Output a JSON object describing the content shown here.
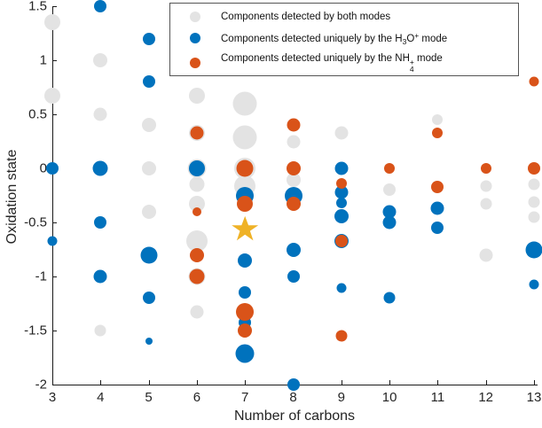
{
  "chart_data": {
    "type": "scatter",
    "xlabel": "Number of carbons",
    "ylabel": "Oxidation state",
    "xlim": [
      3,
      13
    ],
    "ylim": [
      -2,
      1.5
    ],
    "xticks": [
      3,
      4,
      5,
      6,
      7,
      8,
      9,
      10,
      11,
      12,
      13
    ],
    "ytick_labels": [
      "-2",
      "-1.5",
      "-1",
      "-0.5",
      "0",
      "0.5",
      "1",
      "1.5"
    ],
    "ytick_values": [
      -2,
      -1.5,
      -1,
      -0.5,
      0,
      0.5,
      1,
      1.5
    ],
    "legend_position": "top-center",
    "grid": false,
    "series": [
      {
        "name": "Components detected by both modes",
        "color": "#E3E3E3",
        "points": [
          {
            "x": 3,
            "y": 1.35,
            "r": 9
          },
          {
            "x": 3,
            "y": 0.67,
            "r": 9
          },
          {
            "x": 4,
            "y": 1.0,
            "r": 8
          },
          {
            "x": 4,
            "y": 0.5,
            "r": 7.5
          },
          {
            "x": 4,
            "y": -1.5,
            "r": 6.5
          },
          {
            "x": 5,
            "y": 0.4,
            "r": 8
          },
          {
            "x": 5,
            "y": 0,
            "r": 8
          },
          {
            "x": 5,
            "y": -0.4,
            "r": 8
          },
          {
            "x": 6,
            "y": 0.67,
            "r": 9
          },
          {
            "x": 6,
            "y": 0.33,
            "r": 9
          },
          {
            "x": 6,
            "y": 0,
            "r": 10.5
          },
          {
            "x": 6,
            "y": -0.15,
            "r": 8.5
          },
          {
            "x": 6,
            "y": -0.33,
            "r": 9
          },
          {
            "x": 6,
            "y": -0.67,
            "r": 12
          },
          {
            "x": 6,
            "y": -1.0,
            "r": 9.5
          },
          {
            "x": 6,
            "y": -1.33,
            "r": 7.5
          },
          {
            "x": 7,
            "y": 0.6,
            "r": 13.5
          },
          {
            "x": 7,
            "y": 0.29,
            "r": 13.5
          },
          {
            "x": 7,
            "y": 0,
            "r": 12
          },
          {
            "x": 7,
            "y": -0.16,
            "r": 12
          },
          {
            "x": 8,
            "y": 0.25,
            "r": 7.5
          },
          {
            "x": 8,
            "y": -0.11,
            "r": 8
          },
          {
            "x": 9,
            "y": 0.33,
            "r": 7.5
          },
          {
            "x": 10,
            "y": -0.2,
            "r": 7
          },
          {
            "x": 11,
            "y": 0.45,
            "r": 6
          },
          {
            "x": 12,
            "y": -0.16,
            "r": 6.5
          },
          {
            "x": 12,
            "y": -0.33,
            "r": 6.5
          },
          {
            "x": 12,
            "y": -0.8,
            "r": 7.5
          },
          {
            "x": 13,
            "y": -0.15,
            "r": 6.5
          },
          {
            "x": 13,
            "y": -0.31,
            "r": 6.5
          },
          {
            "x": 13,
            "y": -0.45,
            "r": 6.5
          }
        ]
      },
      {
        "name": "Components detected uniquely by the H3O+ mode",
        "color": "#0072BD",
        "points": [
          {
            "x": 3,
            "y": 0,
            "r": 7
          },
          {
            "x": 3,
            "y": -0.67,
            "r": 5.5
          },
          {
            "x": 4,
            "y": 1.5,
            "r": 7
          },
          {
            "x": 4,
            "y": 0,
            "r": 8.5
          },
          {
            "x": 4,
            "y": -0.5,
            "r": 7
          },
          {
            "x": 4,
            "y": -1.0,
            "r": 7.5
          },
          {
            "x": 5,
            "y": 1.2,
            "r": 7
          },
          {
            "x": 5,
            "y": 0.8,
            "r": 7
          },
          {
            "x": 5,
            "y": -0.8,
            "r": 9.5
          },
          {
            "x": 5,
            "y": -1.2,
            "r": 7
          },
          {
            "x": 5,
            "y": -1.6,
            "r": 4
          },
          {
            "x": 6,
            "y": 0,
            "r": 9
          },
          {
            "x": 7,
            "y": -0.25,
            "r": 10
          },
          {
            "x": 7,
            "y": -0.85,
            "r": 8
          },
          {
            "x": 7,
            "y": -1.15,
            "r": 7
          },
          {
            "x": 7,
            "y": -1.43,
            "r": 7
          },
          {
            "x": 7,
            "y": -1.71,
            "r": 10.5
          },
          {
            "x": 8,
            "y": -0.25,
            "r": 10
          },
          {
            "x": 8,
            "y": -0.75,
            "r": 8
          },
          {
            "x": 8,
            "y": -1.0,
            "r": 7
          },
          {
            "x": 8,
            "y": -2.0,
            "r": 7
          },
          {
            "x": 9,
            "y": 0,
            "r": 7.5
          },
          {
            "x": 9,
            "y": -0.22,
            "r": 7.5
          },
          {
            "x": 9,
            "y": -0.32,
            "r": 6
          },
          {
            "x": 9,
            "y": -0.44,
            "r": 8
          },
          {
            "x": 9,
            "y": -0.67,
            "r": 8
          },
          {
            "x": 9,
            "y": -1.11,
            "r": 5.5
          },
          {
            "x": 10,
            "y": -0.4,
            "r": 7.5
          },
          {
            "x": 10,
            "y": -0.5,
            "r": 7.5
          },
          {
            "x": 10,
            "y": -1.2,
            "r": 6.5
          },
          {
            "x": 11,
            "y": -0.37,
            "r": 7.5
          },
          {
            "x": 11,
            "y": -0.55,
            "r": 7
          },
          {
            "x": 13,
            "y": -0.75,
            "r": 9.5
          },
          {
            "x": 13,
            "y": -1.07,
            "r": 5.5
          }
        ]
      },
      {
        "name": "Components detected uniquely by the NH4+ mode",
        "color": "#D95319",
        "points": [
          {
            "x": 6,
            "y": 0.33,
            "r": 7.5
          },
          {
            "x": 6,
            "y": -0.4,
            "r": 5
          },
          {
            "x": 6,
            "y": -0.8,
            "r": 8
          },
          {
            "x": 6,
            "y": -1.0,
            "r": 8.5
          },
          {
            "x": 7,
            "y": 0,
            "r": 9.5
          },
          {
            "x": 7,
            "y": -0.33,
            "r": 9
          },
          {
            "x": 7,
            "y": -1.33,
            "r": 10
          },
          {
            "x": 7,
            "y": -1.5,
            "r": 8
          },
          {
            "x": 8,
            "y": 0.4,
            "r": 7.5
          },
          {
            "x": 8,
            "y": 0,
            "r": 8
          },
          {
            "x": 8,
            "y": -0.33,
            "r": 8
          },
          {
            "x": 9,
            "y": -0.14,
            "r": 6
          },
          {
            "x": 9,
            "y": -0.67,
            "r": 7
          },
          {
            "x": 9,
            "y": -1.55,
            "r": 6.5
          },
          {
            "x": 10,
            "y": 0,
            "r": 6
          },
          {
            "x": 11,
            "y": 0.33,
            "r": 6
          },
          {
            "x": 11,
            "y": -0.17,
            "r": 7
          },
          {
            "x": 12,
            "y": 0,
            "r": 6
          },
          {
            "x": 13,
            "y": 0.8,
            "r": 5.5
          },
          {
            "x": 13,
            "y": 0,
            "r": 7
          }
        ]
      }
    ],
    "annotations": [
      {
        "type": "star",
        "x": 7,
        "y": -0.56,
        "color": "#EFB226",
        "width": 30,
        "height": 29
      }
    ]
  },
  "axis": {
    "xlabel": "Number of carbons",
    "ylabel": "Oxidation state"
  },
  "legend": {
    "items": [
      {
        "text": "Components detected by both modes"
      },
      {
        "prefix": "Components detected uniquely by the H",
        "sub": "3",
        "mid": "O",
        "sup": "+",
        "suffix": " mode"
      },
      {
        "prefix": "Components detected uniquely by the NH",
        "sub": "4",
        "sup": "+",
        "suffix": " mode"
      }
    ]
  }
}
